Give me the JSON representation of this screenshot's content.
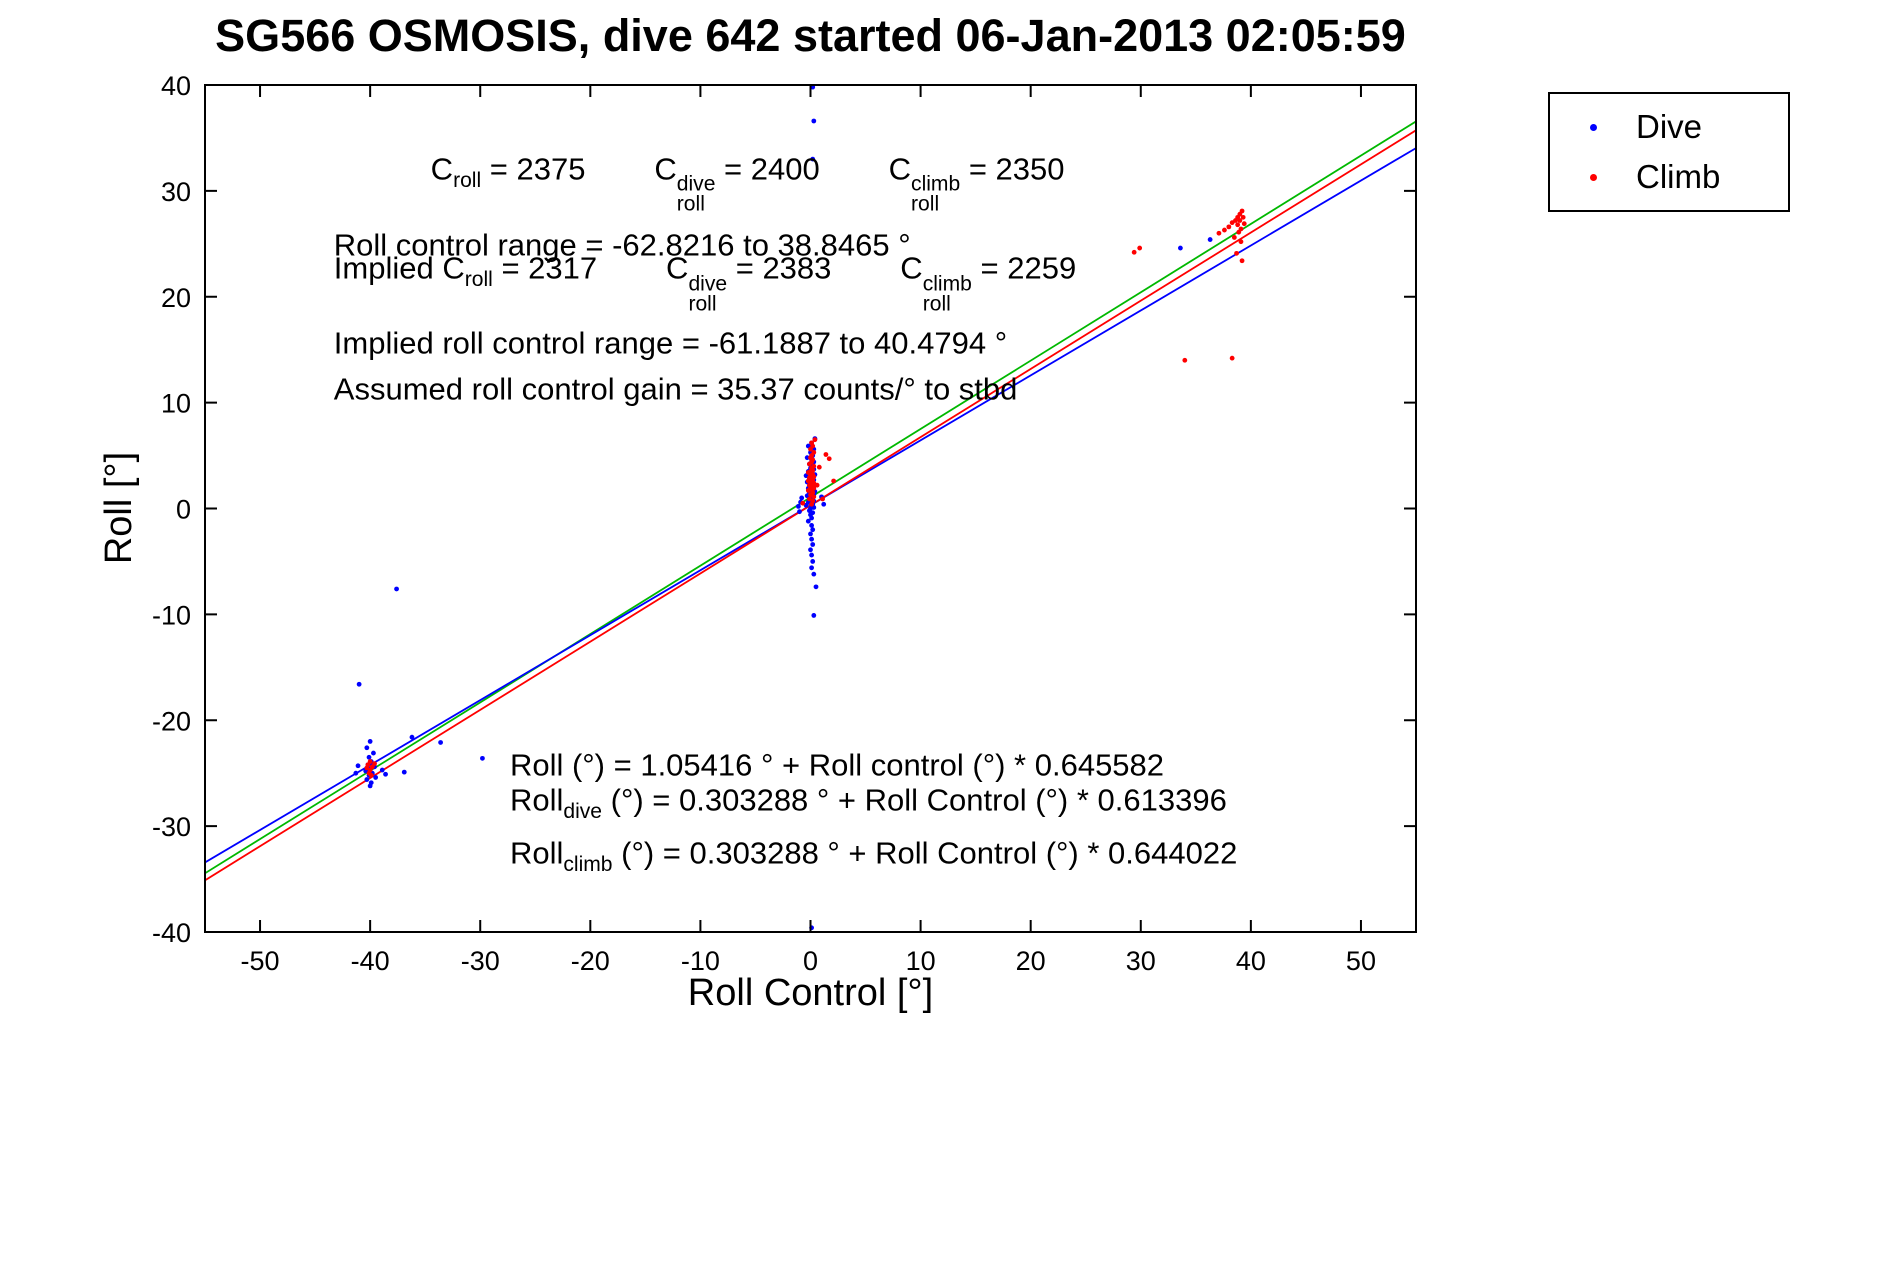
{
  "title": "SG566 OSMOSIS, dive 642 started 06-Jan-2013 02:05:59",
  "colors": {
    "dive": "#0000ff",
    "climb": "#ff0000",
    "combined_fit": "#00b800",
    "axis": "#000000"
  },
  "legend": {
    "items": [
      {
        "label": "Dive",
        "color": "#0000ff"
      },
      {
        "label": "Climb",
        "color": "#ff0000"
      }
    ]
  },
  "chart_data": {
    "type": "scatter",
    "title": "SG566 OSMOSIS, dive 642 started 06-Jan-2013 02:05:59",
    "xlabel": "Roll Control [°]",
    "ylabel": "Roll [°]",
    "xlim": [
      -55,
      55
    ],
    "ylim": [
      -40,
      40
    ],
    "xticks": [
      -50,
      -40,
      -30,
      -20,
      -10,
      0,
      10,
      20,
      30,
      40,
      50
    ],
    "yticks": [
      -40,
      -30,
      -20,
      -10,
      0,
      10,
      20,
      30,
      40
    ],
    "grid": false,
    "legend_position": "northeast-outside",
    "series": [
      {
        "name": "Dive",
        "color": "#0000ff",
        "marker": "dot",
        "points": [
          [
            0.2,
            39.8
          ],
          [
            0.3,
            36.6
          ],
          [
            0.2,
            33.0
          ],
          [
            0.4,
            6.6
          ],
          [
            0.1,
            6.2
          ],
          [
            -0.2,
            5.9
          ],
          [
            0.3,
            5.6
          ],
          [
            0.0,
            5.3
          ],
          [
            0.2,
            5.0
          ],
          [
            -0.3,
            4.8
          ],
          [
            0.1,
            4.6
          ],
          [
            0.3,
            4.4
          ],
          [
            -0.1,
            4.2
          ],
          [
            0.2,
            4.0
          ],
          [
            0.0,
            3.8
          ],
          [
            0.3,
            3.7
          ],
          [
            -0.2,
            3.5
          ],
          [
            0.1,
            3.4
          ],
          [
            0.4,
            3.2
          ],
          [
            -0.4,
            3.1
          ],
          [
            0.0,
            3.0
          ],
          [
            0.2,
            2.9
          ],
          [
            -0.1,
            2.8
          ],
          [
            0.3,
            2.7
          ],
          [
            0.1,
            2.6
          ],
          [
            -0.3,
            2.5
          ],
          [
            0.2,
            2.4
          ],
          [
            0.0,
            2.3
          ],
          [
            -0.1,
            2.2
          ],
          [
            0.3,
            2.1
          ],
          [
            0.1,
            2.0
          ],
          [
            -0.2,
            1.9
          ],
          [
            0.2,
            1.8
          ],
          [
            0.0,
            1.7
          ],
          [
            0.4,
            1.6
          ],
          [
            -0.1,
            1.5
          ],
          [
            0.1,
            1.4
          ],
          [
            0.3,
            1.3
          ],
          [
            -0.3,
            1.2
          ],
          [
            0.0,
            1.1
          ],
          [
            0.2,
            1.0
          ],
          [
            -0.1,
            0.9
          ],
          [
            0.1,
            0.8
          ],
          [
            0.3,
            0.7
          ],
          [
            -0.2,
            0.6
          ],
          [
            0.0,
            0.5
          ],
          [
            0.2,
            0.4
          ],
          [
            -0.4,
            0.3
          ],
          [
            0.1,
            0.2
          ],
          [
            0.3,
            0.1
          ],
          [
            0.0,
            0.0
          ],
          [
            -0.1,
            -0.2
          ],
          [
            0.2,
            -0.4
          ],
          [
            0.0,
            -0.6
          ],
          [
            0.1,
            -0.9
          ],
          [
            -0.2,
            -1.2
          ],
          [
            0.1,
            -1.6
          ],
          [
            0.2,
            -2.0
          ],
          [
            0.0,
            -2.4
          ],
          [
            0.1,
            -2.9
          ],
          [
            0.2,
            -3.4
          ],
          [
            0.0,
            -3.9
          ],
          [
            0.1,
            -4.4
          ],
          [
            0.2,
            -5.0
          ],
          [
            0.1,
            -5.6
          ],
          [
            0.3,
            -6.2
          ],
          [
            0.5,
            -7.4
          ],
          [
            0.3,
            -10.1
          ],
          [
            0.1,
            -39.6
          ],
          [
            -0.9,
            0.6
          ],
          [
            -1.1,
            0.2
          ],
          [
            -0.8,
            1.0
          ],
          [
            -1.0,
            -0.3
          ],
          [
            1.2,
            0.4
          ],
          [
            1.0,
            1.1
          ],
          [
            -40.0,
            -22.0
          ],
          [
            -40.3,
            -22.6
          ],
          [
            -39.7,
            -23.1
          ],
          [
            -40.1,
            -23.5
          ],
          [
            -39.9,
            -23.9
          ],
          [
            -40.2,
            -24.2
          ],
          [
            -39.6,
            -24.4
          ],
          [
            -40.0,
            -24.6
          ],
          [
            -40.4,
            -24.8
          ],
          [
            -39.8,
            -25.0
          ],
          [
            -40.1,
            -25.2
          ],
          [
            -39.5,
            -25.4
          ],
          [
            -40.3,
            -25.6
          ],
          [
            -39.9,
            -25.9
          ],
          [
            -40.0,
            -26.2
          ],
          [
            -41.1,
            -24.3
          ],
          [
            -41.3,
            -25.0
          ],
          [
            -38.9,
            -24.7
          ],
          [
            -38.6,
            -25.1
          ],
          [
            -41.0,
            -16.6
          ],
          [
            -37.6,
            -7.6
          ],
          [
            -36.2,
            -21.6
          ],
          [
            -33.6,
            -22.1
          ],
          [
            -29.8,
            -23.6
          ],
          [
            -36.9,
            -24.9
          ],
          [
            33.6,
            24.6
          ],
          [
            36.3,
            25.4
          ]
        ]
      },
      {
        "name": "Climb",
        "color": "#ff0000",
        "marker": "dot",
        "points": [
          [
            0.1,
            0.4
          ],
          [
            0.2,
            0.7
          ],
          [
            -0.1,
            0.9
          ],
          [
            0.3,
            1.1
          ],
          [
            0.0,
            1.3
          ],
          [
            0.2,
            1.5
          ],
          [
            -0.2,
            1.7
          ],
          [
            0.1,
            1.8
          ],
          [
            0.3,
            1.9
          ],
          [
            0.0,
            2.0
          ],
          [
            0.2,
            2.1
          ],
          [
            -0.1,
            2.2
          ],
          [
            0.1,
            2.3
          ],
          [
            0.3,
            2.4
          ],
          [
            0.0,
            2.5
          ],
          [
            -0.2,
            2.6
          ],
          [
            0.2,
            2.7
          ],
          [
            0.1,
            2.8
          ],
          [
            -0.1,
            2.9
          ],
          [
            0.3,
            3.0
          ],
          [
            0.0,
            3.1
          ],
          [
            0.2,
            3.2
          ],
          [
            0.1,
            3.3
          ],
          [
            -0.2,
            3.4
          ],
          [
            0.0,
            3.5
          ],
          [
            0.2,
            3.6
          ],
          [
            0.1,
            3.8
          ],
          [
            0.3,
            4.0
          ],
          [
            -0.1,
            4.2
          ],
          [
            0.1,
            4.4
          ],
          [
            0.2,
            4.6
          ],
          [
            0.0,
            4.8
          ],
          [
            0.1,
            5.0
          ],
          [
            0.3,
            5.3
          ],
          [
            0.0,
            5.6
          ],
          [
            0.2,
            5.9
          ],
          [
            0.1,
            6.2
          ],
          [
            0.4,
            6.5
          ],
          [
            1.4,
            5.1
          ],
          [
            1.7,
            4.7
          ],
          [
            2.1,
            2.6
          ],
          [
            1.1,
            0.9
          ],
          [
            -0.7,
            0.5
          ],
          [
            0.8,
            3.9
          ],
          [
            0.6,
            2.2
          ],
          [
            -40.0,
            -23.9
          ],
          [
            -40.2,
            -24.2
          ],
          [
            -39.8,
            -24.4
          ],
          [
            -40.0,
            -24.7
          ],
          [
            -40.1,
            -25.0
          ],
          [
            -39.9,
            -25.2
          ],
          [
            -40.3,
            -24.5
          ],
          [
            -39.6,
            -24.1
          ],
          [
            37.1,
            26.0
          ],
          [
            37.6,
            26.3
          ],
          [
            38.0,
            26.6
          ],
          [
            38.3,
            27.0
          ],
          [
            38.6,
            27.2
          ],
          [
            38.8,
            27.5
          ],
          [
            39.0,
            27.8
          ],
          [
            39.2,
            28.1
          ],
          [
            39.0,
            27.2
          ],
          [
            38.8,
            26.8
          ],
          [
            39.1,
            26.4
          ],
          [
            38.9,
            26.1
          ],
          [
            39.3,
            27.5
          ],
          [
            39.1,
            25.2
          ],
          [
            38.7,
            24.1
          ],
          [
            39.2,
            23.4
          ],
          [
            38.5,
            25.6
          ],
          [
            39.4,
            26.9
          ],
          [
            29.9,
            24.6
          ],
          [
            29.4,
            24.2
          ],
          [
            34.0,
            14.0
          ],
          [
            38.3,
            14.2
          ]
        ]
      }
    ],
    "lines": [
      {
        "name": "combined-fit",
        "color": "#00b800",
        "intercept": 1.05416,
        "slope": 0.645582
      },
      {
        "name": "dive-fit",
        "color": "#0000ff",
        "intercept": 0.303288,
        "slope": 0.613396
      },
      {
        "name": "climb-fit",
        "color": "#ff0000",
        "intercept": 0.303288,
        "slope": 0.644022
      }
    ],
    "annotations": [
      {
        "x": -34.5,
        "y": 30.6,
        "segments": [
          {
            "t": "C"
          },
          {
            "sb": "roll"
          },
          {
            "t": " = 2375        C"
          },
          {
            "ss": [
              "roll",
              "dive"
            ]
          },
          {
            "t": " = 2400        C"
          },
          {
            "ss": [
              "roll",
              "climb"
            ]
          },
          {
            "t": " = 2350"
          }
        ]
      },
      {
        "x": -43.3,
        "y": 24.8,
        "segments": [
          {
            "t": "Roll control range = -62.8216 to 38.8465 °"
          }
        ]
      },
      {
        "x": -43.3,
        "y": 21.2,
        "segments": [
          {
            "t": "Implied C"
          },
          {
            "sb": "roll"
          },
          {
            "t": " = 2317        C"
          },
          {
            "ss": [
              "roll",
              "dive"
            ]
          },
          {
            "t": " = 2383        C"
          },
          {
            "ss": [
              "roll",
              "climb"
            ]
          },
          {
            "t": " = 2259"
          }
        ]
      },
      {
        "x": -43.3,
        "y": 15.5,
        "segments": [
          {
            "t": "Implied roll control range = -61.1887 to 40.4794 °"
          }
        ]
      },
      {
        "x": -43.3,
        "y": 11.2,
        "segments": [
          {
            "t": "Assumed roll control gain = 35.37 counts/° to stbd"
          }
        ]
      },
      {
        "x": -27.3,
        "y": -24.3,
        "segments": [
          {
            "t": "Roll (°) = 1.05416 ° + Roll control (°) * 0.645582"
          }
        ]
      },
      {
        "x": -27.3,
        "y": -27.9,
        "segments": [
          {
            "t": "Roll"
          },
          {
            "sb": "dive"
          },
          {
            "t": " (°) = 0.303288 ° + Roll Control (°) * 0.613396"
          }
        ]
      },
      {
        "x": -27.3,
        "y": -32.9,
        "segments": [
          {
            "t": "Roll"
          },
          {
            "sb": "climb"
          },
          {
            "t": " (°) = 0.303288 ° + Roll Control (°) * 0.644022"
          }
        ]
      }
    ]
  }
}
